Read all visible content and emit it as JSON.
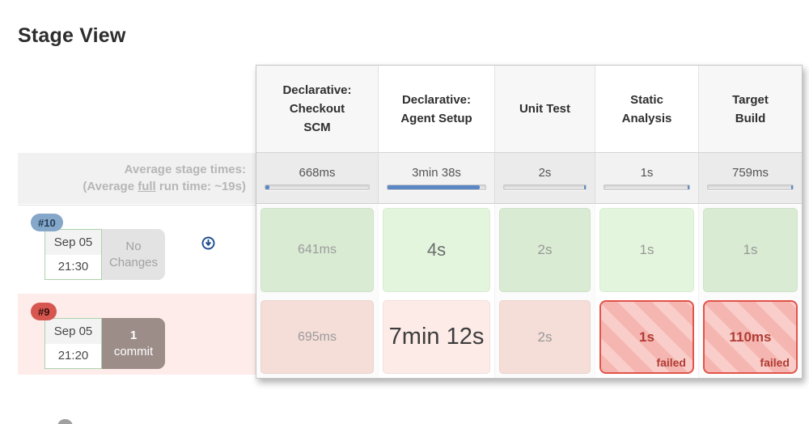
{
  "page": {
    "title": "Stage View"
  },
  "average": {
    "label_line1": "Average stage times:",
    "label_line2_pre": "(Average ",
    "label_line2_em": "full",
    "label_line2_post": " run time: ~19s)"
  },
  "columns": [
    {
      "label": "Declarative:\nCheckout\nSCM",
      "avg": "668ms",
      "bar": {
        "pct": 4,
        "side": "left"
      }
    },
    {
      "label": "Declarative:\nAgent Setup",
      "avg": "3min 38s",
      "bar": {
        "pct": 94,
        "side": "left"
      }
    },
    {
      "label": "Unit Test",
      "avg": "2s",
      "bar": {
        "pct": 2,
        "side": "right"
      }
    },
    {
      "label": "Static\nAnalysis",
      "avg": "1s",
      "bar": {
        "pct": 2,
        "side": "right"
      }
    },
    {
      "label": "Target\nBuild",
      "avg": "759ms",
      "bar": {
        "pct": 2,
        "side": "right"
      }
    }
  ],
  "builds": [
    {
      "number": "#10",
      "date": "Sep 05",
      "time": "21:30",
      "changes": "No\nChanges",
      "cells": [
        {
          "d": "641ms"
        },
        {
          "d": "4s"
        },
        {
          "d": "2s"
        },
        {
          "d": "1s"
        },
        {
          "d": "1s"
        }
      ]
    },
    {
      "number": "#9",
      "date": "Sep 05",
      "time": "21:20",
      "commit_count": "1",
      "commit_word": "commit",
      "cells": [
        {
          "d": "695ms"
        },
        {
          "d": "7min 12s"
        },
        {
          "d": "2s"
        },
        {
          "d": "1s",
          "failed_label": "failed"
        },
        {
          "d": "110ms",
          "failed_label": "failed"
        }
      ]
    }
  ],
  "colors": {
    "badge_blue": "#84a7ca",
    "badge_red": "#d75750",
    "bar_blue": "#5b87c5",
    "success_cell": "#d9ebd3",
    "fail_cell": "#f5b6b1",
    "fail_border": "#e2544b",
    "fail_text": "#b13c35",
    "avg_band": "#f1f1f1",
    "pink_band": "#fdecea",
    "commit_box": "#9c8d88",
    "icon_blue": "#1d4d8f"
  }
}
